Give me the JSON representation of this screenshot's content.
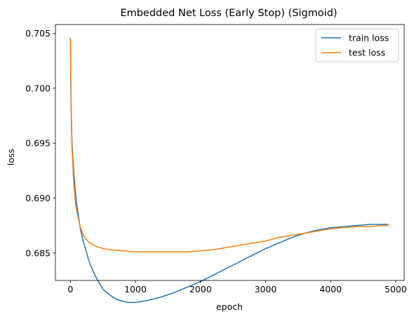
{
  "chart_data": {
    "type": "line",
    "title": "Embedded Net Loss (Early Stop) (Sigmoid)",
    "xlabel": "epoch",
    "ylabel": "loss",
    "xlim": [
      -230,
      5130
    ],
    "ylim": [
      0.6825,
      0.7058
    ],
    "xticks": [
      0,
      1000,
      2000,
      3000,
      4000,
      5000
    ],
    "yticks": [
      0.685,
      0.69,
      0.695,
      0.7,
      0.705
    ],
    "xtick_labels": [
      "0",
      "1000",
      "2000",
      "3000",
      "4000",
      "5000"
    ],
    "ytick_labels": [
      "0.685",
      "0.690",
      "0.695",
      "0.700",
      "0.705"
    ],
    "grid": false,
    "legend_position": "top-right",
    "series": [
      {
        "name": "train loss",
        "color": "#1f77b4",
        "x": [
          0,
          10,
          25,
          50,
          75,
          100,
          150,
          200,
          300,
          400,
          500,
          600,
          700,
          800,
          900,
          1000,
          1200,
          1400,
          1600,
          1800,
          2000,
          2200,
          2400,
          2600,
          2800,
          3000,
          3200,
          3400,
          3600,
          3800,
          4000,
          4200,
          4400,
          4600,
          4800,
          4890
        ],
        "values": [
          0.7046,
          0.699,
          0.695,
          0.6925,
          0.6907,
          0.6893,
          0.6873,
          0.686,
          0.684,
          0.6827,
          0.6817,
          0.6812,
          0.6808,
          0.6806,
          0.6805,
          0.6805,
          0.6807,
          0.681,
          0.6814,
          0.6819,
          0.6824,
          0.683,
          0.6836,
          0.6842,
          0.6848,
          0.6854,
          0.6859,
          0.6864,
          0.6868,
          0.6871,
          0.6873,
          0.6874,
          0.6875,
          0.6876,
          0.6876,
          0.6876
        ]
      },
      {
        "name": "test loss",
        "color": "#ff7f0e",
        "x": [
          0,
          10,
          25,
          50,
          75,
          100,
          150,
          200,
          250,
          300,
          400,
          500,
          600,
          800,
          1000,
          1200,
          1400,
          1600,
          1800,
          2000,
          2200,
          2400,
          2600,
          2800,
          3000,
          3200,
          3400,
          3600,
          3800,
          4000,
          4200,
          4400,
          4600,
          4800,
          4890
        ],
        "values": [
          0.7046,
          0.6985,
          0.6945,
          0.6915,
          0.6897,
          0.6887,
          0.6874,
          0.6866,
          0.6862,
          0.6859,
          0.6856,
          0.6854,
          0.6853,
          0.6852,
          0.6851,
          0.6851,
          0.6851,
          0.6851,
          0.6851,
          0.6852,
          0.6853,
          0.6855,
          0.6857,
          0.6859,
          0.6861,
          0.6864,
          0.6866,
          0.6868,
          0.687,
          0.6872,
          0.6873,
          0.6874,
          0.6874,
          0.6875,
          0.6875
        ]
      }
    ]
  }
}
